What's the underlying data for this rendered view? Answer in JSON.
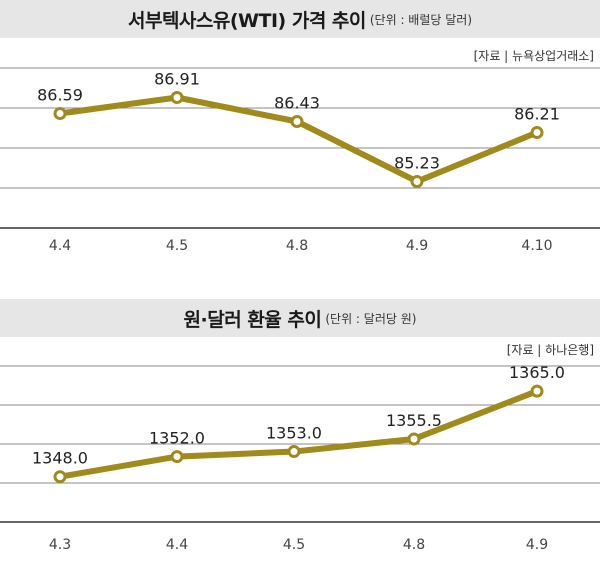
{
  "colors": {
    "line": "#a08a1c",
    "grid": "#888888",
    "axis": "#333333",
    "title_bg": "#e6e6e6"
  },
  "chart_data": [
    {
      "type": "line",
      "title": "서부텍사스유(WTI) 가격 추이",
      "unit": "(단위 : 배럴당 달러)",
      "source": "[자료 | 뉴욕상업거래소]",
      "categories": [
        "4.4",
        "4.5",
        "4.8",
        "4.9",
        "4.10"
      ],
      "values": [
        86.59,
        86.91,
        86.43,
        85.23,
        86.21
      ],
      "labels": [
        "86.59",
        "86.91",
        "86.43",
        "85.23",
        "86.21"
      ],
      "ylim": [
        84.3,
        87.5
      ]
    },
    {
      "type": "line",
      "title": "원·달러 환율 추이",
      "unit": "(단위 : 달러당 원)",
      "source": "[자료 | 하나은행]",
      "categories": [
        "4.3",
        "4.4",
        "4.5",
        "4.8",
        "4.9"
      ],
      "values": [
        1348.0,
        1352.0,
        1353.0,
        1355.5,
        1365.0
      ],
      "labels": [
        "1348.0",
        "1352.0",
        "1353.0",
        "1355.5",
        "1365.0"
      ],
      "ylim": [
        1339,
        1370
      ]
    }
  ]
}
